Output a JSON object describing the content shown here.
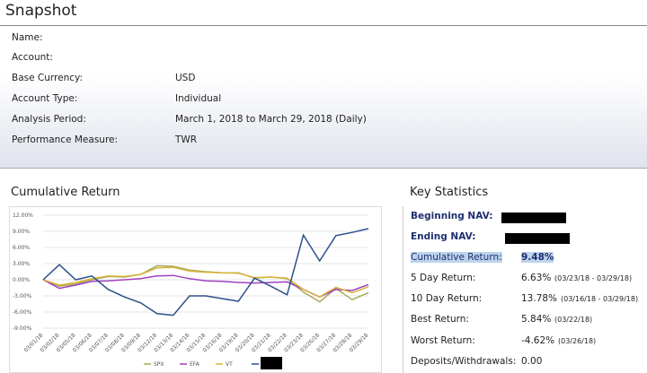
{
  "header": {
    "title": "Snapshot"
  },
  "snapshot": {
    "rows": [
      {
        "label": "Name:",
        "value": null
      },
      {
        "label": "Account:",
        "value": null
      },
      {
        "label": "Base Currency:",
        "value": "USD"
      },
      {
        "label": "Account Type:",
        "value": "Individual"
      },
      {
        "label": "Analysis Period:",
        "value": "March 1, 2018 to March 29, 2018 (Daily)"
      },
      {
        "label": "Performance Measure:",
        "value": "TWR"
      }
    ]
  },
  "chart_data": {
    "type": "line",
    "title": "Cumulative Return",
    "categories": [
      "03/01/18",
      "03/02/18",
      "03/05/18",
      "03/06/18",
      "03/07/18",
      "03/08/18",
      "03/09/18",
      "03/12/18",
      "03/13/18",
      "03/14/18",
      "03/15/18",
      "03/16/18",
      "03/19/18",
      "03/20/18",
      "03/21/18",
      "03/22/18",
      "03/23/18",
      "03/26/18",
      "03/27/18",
      "03/28/18",
      "03/29/18"
    ],
    "ylim": [
      -9,
      12
    ],
    "yticks": [
      {
        "value": 12,
        "label": "12.00%"
      },
      {
        "value": 9,
        "label": "9.00%"
      },
      {
        "value": 6,
        "label": "6.00%"
      },
      {
        "value": 3,
        "label": "3.00%"
      },
      {
        "value": 0,
        "label": "0.00%"
      },
      {
        "value": -3,
        "label": "-3.00%"
      },
      {
        "value": -6,
        "label": "-6.00%"
      },
      {
        "value": -9,
        "label": "-9.00%"
      }
    ],
    "grid": true,
    "series": [
      {
        "name": "SPX",
        "color": "#a3ab5c",
        "values": [
          0,
          -1.2,
          -0.8,
          0,
          0.6,
          0.5,
          1.0,
          2.6,
          2.5,
          1.8,
          1.5,
          1.3,
          1.3,
          0.3,
          0.5,
          0.2,
          -2.3,
          -4.1,
          -1.6,
          -3.7,
          -2.4
        ]
      },
      {
        "name": "EFA",
        "color": "#a040c0",
        "values": [
          0,
          -1.6,
          -1.0,
          -0.3,
          -0.2,
          0,
          0.2,
          0.7,
          0.8,
          0.2,
          -0.2,
          -0.3,
          -0.5,
          -0.6,
          -0.5,
          -0.4,
          -1.8,
          -3.2,
          -1.8,
          -2.0,
          -0.9
        ]
      },
      {
        "name": "VT",
        "color": "#d9b43a",
        "values": [
          0,
          -1.0,
          -0.5,
          0.2,
          0.7,
          0.6,
          1.0,
          2.2,
          2.3,
          1.6,
          1.4,
          1.3,
          1.2,
          0.4,
          0.5,
          0.3,
          -1.8,
          -3.2,
          -1.4,
          -2.4,
          -1.3
        ]
      },
      {
        "color": "#2d4f8a",
        "values": [
          0,
          2.8,
          0,
          0.7,
          -1.8,
          -3.2,
          -4.3,
          -6.3,
          -6.6,
          -3.0,
          -3.0,
          -3.5,
          -4.0,
          0.3,
          -1.2,
          -2.8,
          8.3,
          3.5,
          8.2,
          8.8,
          9.5
        ]
      }
    ]
  },
  "key_statistics": {
    "title": "Key Statistics",
    "rows": [
      {
        "label": "Beginning NAV:",
        "value": null
      },
      {
        "label": "Ending NAV:",
        "value": null
      },
      {
        "label": "Cumulative Return:",
        "value": "9.48%"
      },
      {
        "label": "5 Day Return:",
        "value": "6.63%",
        "note": "(03/23/18 - 03/29/18)"
      },
      {
        "label": "10 Day Return:",
        "value": "13.78%",
        "note": "(03/16/18 - 03/29/18)"
      },
      {
        "label": "Best Return:",
        "value": "5.84%",
        "note": "(03/22/18)"
      },
      {
        "label": "Worst Return:",
        "value": "-4.62%",
        "note": "(03/26/18)"
      },
      {
        "label": "Deposits/Withdrawals:",
        "value": "0.00"
      }
    ]
  }
}
